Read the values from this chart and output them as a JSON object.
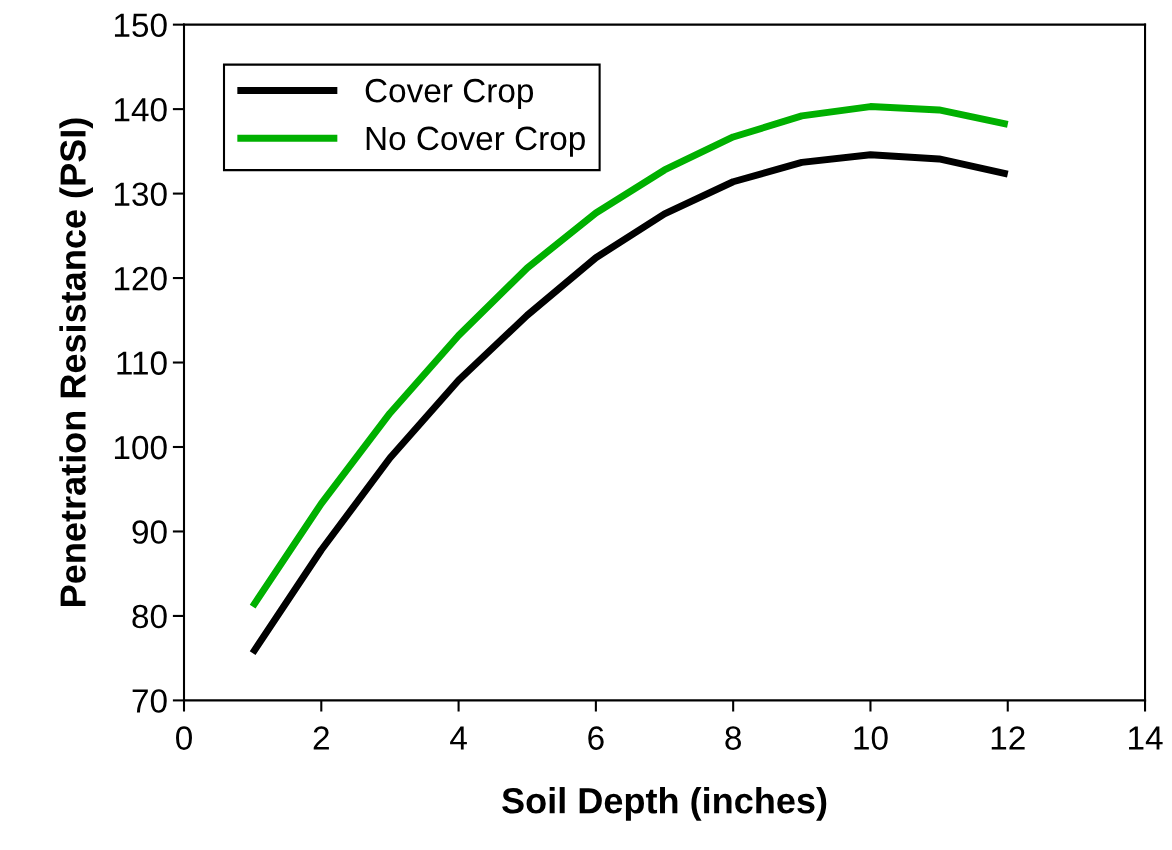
{
  "chart_data": {
    "type": "line",
    "xlabel": "Soil Depth (inches)",
    "ylabel": "Penetration Resistance (PSI)",
    "x": [
      1,
      2,
      3,
      4,
      5,
      6,
      7,
      8,
      9,
      10,
      11,
      12
    ],
    "series": [
      {
        "name": "Cover Crop",
        "color": "#000000",
        "values": [
          75.6,
          87.8,
          98.7,
          107.9,
          115.6,
          122.4,
          127.6,
          131.4,
          133.7,
          134.6,
          134.1,
          132.3
        ]
      },
      {
        "name": "No Cover Crop",
        "color": "#00b000",
        "values": [
          81.1,
          93.3,
          104.0,
          113.2,
          121.2,
          127.7,
          132.8,
          136.7,
          139.2,
          140.3,
          139.9,
          138.2
        ]
      }
    ],
    "xlim": [
      0,
      14
    ],
    "xticks": [
      0,
      2,
      4,
      6,
      8,
      10,
      12,
      14
    ],
    "ylim": [
      70,
      150
    ],
    "yticks": [
      70,
      80,
      90,
      100,
      110,
      120,
      130,
      140,
      150
    ],
    "grid": false,
    "legend": "top left",
    "marker": "none",
    "line_style": "solid"
  }
}
